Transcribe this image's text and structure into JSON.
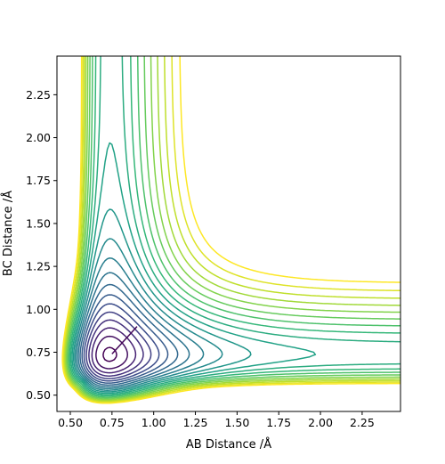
{
  "chart_data": {
    "type": "contour",
    "title": "",
    "xlabel": "AB Distance /Å",
    "ylabel": "BC Distance /Å",
    "xlim": [
      0.42,
      2.48
    ],
    "ylim": [
      0.405,
      2.475
    ],
    "xticks": [
      0.5,
      0.75,
      1.0,
      1.25,
      1.5,
      1.75,
      2.0,
      2.25
    ],
    "xtick_labels": [
      "0.50",
      "0.75",
      "1.00",
      "1.25",
      "1.50",
      "1.75",
      "2.00",
      "2.25"
    ],
    "yticks": [
      0.5,
      0.75,
      1.0,
      1.25,
      1.5,
      1.75,
      2.0,
      2.25
    ],
    "ytick_labels": [
      "0.50",
      "0.75",
      "1.00",
      "1.25",
      "1.50",
      "1.75",
      "2.00",
      "2.25"
    ],
    "grid": false,
    "colormap": "viridis",
    "colormap_stops": [
      "#440154",
      "#482878",
      "#3e4989",
      "#31688e",
      "#26828e",
      "#1f9e89",
      "#35b779",
      "#6ece58",
      "#b5de2b",
      "#fde725"
    ],
    "contour_levels": 22,
    "reaction_path": {
      "x": [
        0.75,
        0.9
      ],
      "y": [
        0.74,
        0.9
      ]
    },
    "legend": "none"
  }
}
